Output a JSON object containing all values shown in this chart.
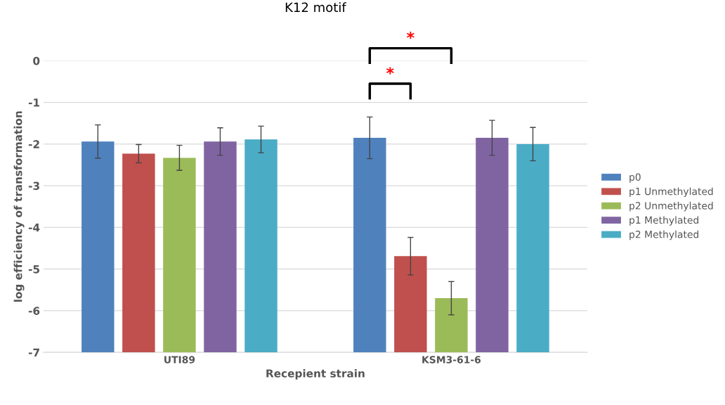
{
  "chart_data": {
    "type": "bar",
    "title": "K12 motif",
    "xlabel": "Recepient strain",
    "ylabel": "log efficiency of transformation",
    "categories": [
      "UTI89",
      "KSM3-61-6"
    ],
    "series": [
      {
        "name": "p0",
        "color": "#4f81bd",
        "base": [
          -7,
          -7
        ],
        "values": [
          5.06,
          5.15
        ],
        "errors": [
          0.4,
          0.5
        ]
      },
      {
        "name": "p1 Unmethylated",
        "color": "#c0504d",
        "base": [
          -7,
          -7
        ],
        "values": [
          4.77,
          2.31
        ],
        "errors": [
          0.22,
          0.45
        ]
      },
      {
        "name": "p2 Unmethylated",
        "color": "#9bbb59",
        "base": [
          -7,
          -7
        ],
        "values": [
          4.67,
          1.3
        ],
        "errors": [
          0.3,
          0.4
        ]
      },
      {
        "name": "p1 Methylated",
        "color": "#8064a2",
        "base": [
          -7,
          -7
        ],
        "values": [
          5.06,
          5.15
        ],
        "errors": [
          0.33,
          0.42
        ]
      },
      {
        "name": "p2 Methylated",
        "color": "#4bacc6",
        "base": [
          -7,
          -7
        ],
        "values": [
          5.11,
          5.0
        ],
        "errors": [
          0.32,
          0.4
        ]
      }
    ],
    "annotations": [
      "*",
      "*"
    ],
    "ylim": [
      -7,
      0
    ],
    "yticks": [
      -7,
      -6,
      -5,
      -4,
      -3,
      -2,
      -1,
      0
    ],
    "grid": "y",
    "legend": "right"
  }
}
